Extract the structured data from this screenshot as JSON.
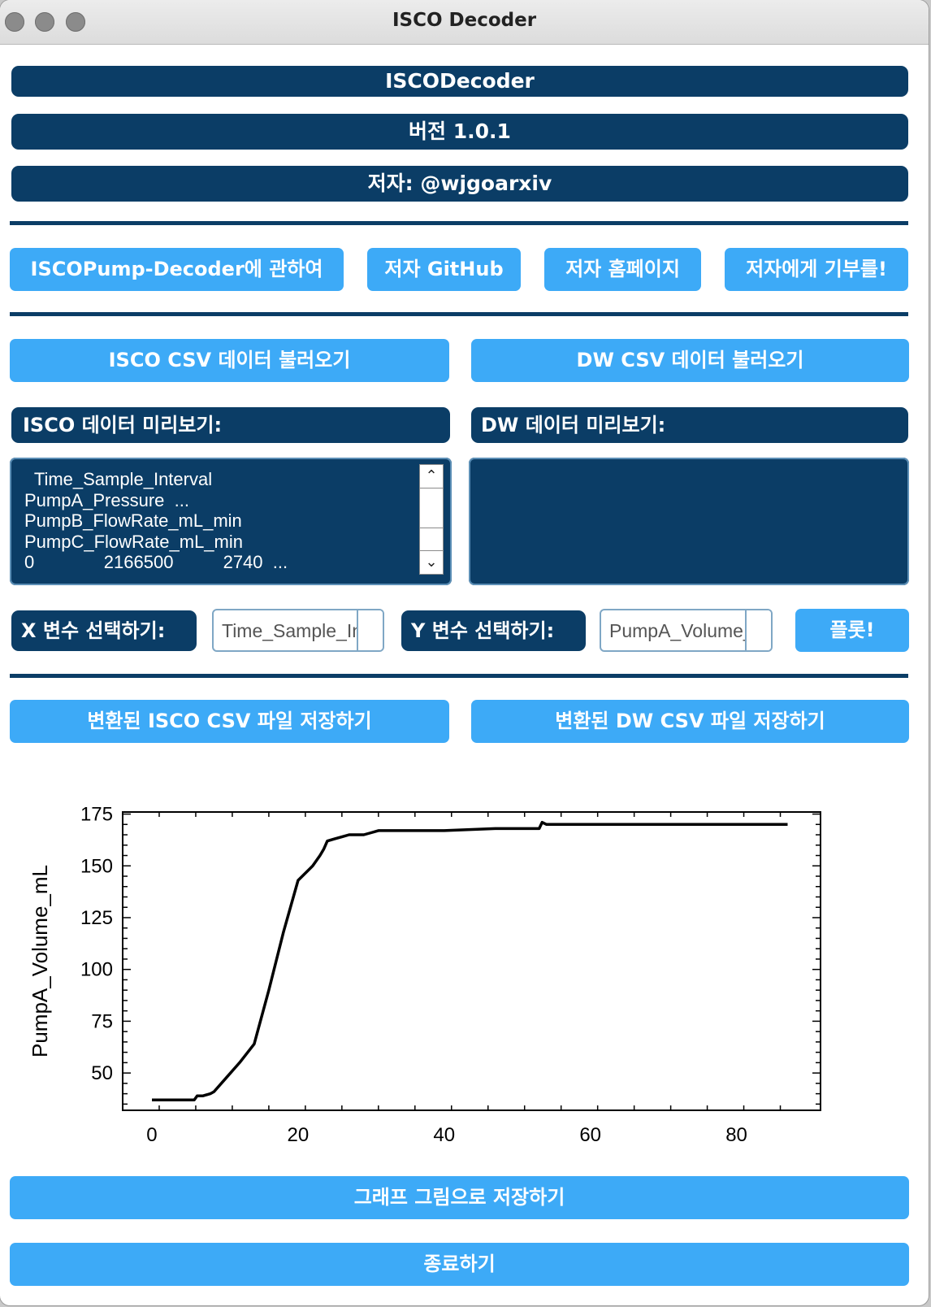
{
  "window": {
    "title": "ISCO Decoder"
  },
  "header": {
    "app_name": "ISCODecoder",
    "version": "버전 1.0.1",
    "author": "저자: @wjgoarxiv"
  },
  "links": {
    "about": "ISCOPump-Decoder에 관하여",
    "github": "저자 GitHub",
    "homepage": "저자 홈페이지",
    "donate": "저자에게 기부를!"
  },
  "load": {
    "isco_button": "ISCO CSV 데이터 불러오기",
    "dw_button": "DW CSV 데이터 불러오기"
  },
  "preview": {
    "isco_label": "ISCO 데이터 미리보기:",
    "dw_label": "DW 데이터 미리보기:",
    "isco_lines": [
      "  Time_Sample_Interval",
      "PumpA_Pressure  ...",
      "PumpB_FlowRate_mL_min",
      "PumpC_FlowRate_mL_min",
      "0              2166500          2740  ..."
    ],
    "dw_text": ""
  },
  "variables": {
    "x_label": "X 변수 선택하기:",
    "x_value": "Time_Sample_Interval",
    "y_label": "Y 변수 선택하기:",
    "y_value": "PumpA_Volume_mL",
    "plot_button": "플롯!"
  },
  "save": {
    "isco_button": "변환된 ISCO CSV 파일 저장하기",
    "dw_button": "변환된 DW CSV 파일 저장하기",
    "figure_button": "그래프 그림으로 저장하기",
    "quit_button": "종료하기"
  },
  "chart_data": {
    "type": "line",
    "title": "",
    "xlabel": "",
    "ylabel": "PumpA_Volume_mL",
    "xlim": [
      -4,
      91.5
    ],
    "ylim": [
      32,
      176
    ],
    "xticks": [
      0,
      20,
      40,
      60,
      80
    ],
    "yticks": [
      50,
      75,
      100,
      125,
      150,
      175
    ],
    "grid": false,
    "line_color": "#000000",
    "series": [
      {
        "x": [
          0,
          5.8,
          6.2,
          7,
          8,
          8.5,
          10,
          12,
          14,
          16,
          18,
          20,
          22,
          23,
          23.5,
          24,
          25,
          26,
          27,
          29,
          30,
          31,
          33,
          40,
          47,
          53,
          53.4,
          54,
          56,
          70,
          87
        ],
        "y": [
          37,
          37,
          39,
          39,
          40,
          41,
          47,
          55,
          64,
          90,
          118,
          143,
          150,
          155,
          158,
          162,
          163,
          164,
          165,
          165,
          166,
          167,
          167,
          167,
          168,
          168,
          171,
          170,
          170,
          170,
          170
        ]
      }
    ]
  }
}
